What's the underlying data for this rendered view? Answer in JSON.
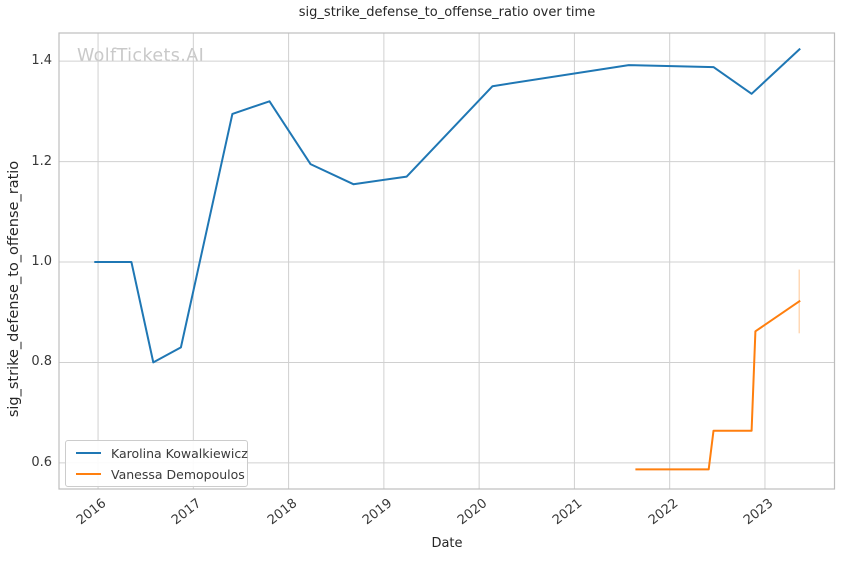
{
  "watermark": "WolfTickets.AI",
  "chart_data": {
    "type": "line",
    "title": "sig_strike_defense_to_offense_ratio over time",
    "xlabel": "Date",
    "ylabel": "sig_strike_defense_to_offense_ratio",
    "x_unit": "decimal_year",
    "grid": true,
    "legend_position": "lower left",
    "xlim": [
      2015.59,
      2023.73
    ],
    "ylim": [
      0.548,
      1.456
    ],
    "x_ticks": [
      2016,
      2017,
      2018,
      2019,
      2020,
      2021,
      2022,
      2023
    ],
    "x_tick_labels": [
      "2016",
      "2017",
      "2018",
      "2019",
      "2020",
      "2021",
      "2022",
      "2023"
    ],
    "y_ticks": [
      0.6,
      0.8,
      1.0,
      1.2,
      1.4
    ],
    "y_tick_labels": [
      "0.6",
      "0.8",
      "1.0",
      "1.2",
      "1.4"
    ],
    "series": [
      {
        "name": "Karolina Kowalkiewicz",
        "color": "#1f77b4",
        "x": [
          2015.96,
          2016.35,
          2016.58,
          2016.87,
          2017.41,
          2017.8,
          2018.23,
          2018.68,
          2019.24,
          2020.14,
          2021.57,
          2022.46,
          2022.86,
          2023.37
        ],
        "y": [
          1.0,
          1.0,
          0.8,
          0.83,
          1.295,
          1.32,
          1.195,
          1.155,
          1.17,
          1.35,
          1.392,
          1.388,
          1.335,
          1.425
        ]
      },
      {
        "name": "Vanessa Demopoulos",
        "color": "#ff7f0e",
        "x": [
          2021.64,
          2022.41,
          2022.46,
          2022.86,
          2022.9,
          2023.37
        ],
        "y": [
          0.587,
          0.587,
          0.664,
          0.664,
          0.862,
          0.923
        ]
      }
    ],
    "error_bar": {
      "series": "Vanessa Demopoulos",
      "x": 2023.36,
      "y_low": 0.858,
      "y_high": 0.985,
      "opacity": 0.3
    },
    "colors": {
      "grid": "#d0d0d0",
      "spine": "#bdbdbd",
      "watermark": "#c9c9c9",
      "text": "#262626"
    }
  }
}
